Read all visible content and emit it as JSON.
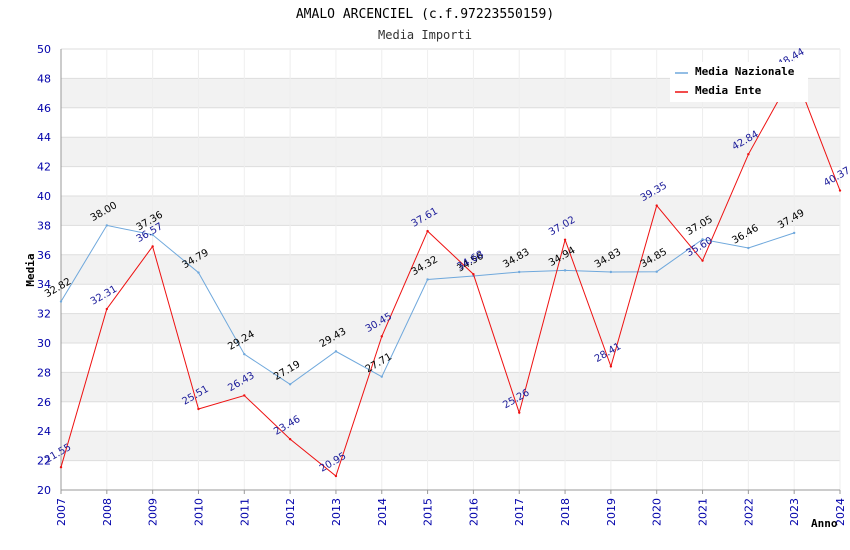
{
  "chart_data": {
    "type": "line",
    "title": "AMALO ARCENCIEL (c.f.97223550159)",
    "subtitle": "Media Importi",
    "ylabel": "Media",
    "xlabel": "Anno",
    "ylim": [
      20,
      50
    ],
    "y_ticks": [
      20,
      22,
      24,
      26,
      28,
      30,
      32,
      34,
      36,
      38,
      40,
      42,
      44,
      46,
      48,
      50
    ],
    "categories": [
      "2007",
      "2008",
      "2009",
      "2010",
      "2011",
      "2012",
      "2013",
      "2014",
      "2015",
      "2016",
      "2017",
      "2018",
      "2019",
      "2020",
      "2021",
      "2022",
      "2023",
      "2024"
    ],
    "series": [
      {
        "name": "Media Nazionale",
        "color": "#6fa8dc",
        "values": [
          32.82,
          38.0,
          37.36,
          34.79,
          29.24,
          27.19,
          29.43,
          27.71,
          34.32,
          34.56,
          34.83,
          34.94,
          34.83,
          34.85,
          37.05,
          36.46,
          37.49,
          null
        ],
        "labels": [
          "32.82",
          "38.00",
          "37.36",
          "34.79",
          "29.24",
          "27.19",
          "29.43",
          "27.71",
          "34.32",
          "34.56",
          "34.83",
          "34.94",
          "34.83",
          "34.85",
          "37.05",
          "36.46",
          "37.49",
          ""
        ]
      },
      {
        "name": "Media Ente",
        "color": "#ee1111",
        "values": [
          21.55,
          32.31,
          36.57,
          25.51,
          26.43,
          23.46,
          20.95,
          30.45,
          37.61,
          34.68,
          25.26,
          37.02,
          28.41,
          39.35,
          35.6,
          42.84,
          48.44,
          40.37
        ],
        "labels": [
          "21.55",
          "32.31",
          "36.57",
          "25.51",
          "26.43",
          "23.46",
          "20.95",
          "30.45",
          "37.61",
          "34.68",
          "25.26",
          "37.02",
          "28.41",
          "39.35",
          "35.60",
          "42.84",
          "48.44",
          "40.37"
        ]
      }
    ]
  }
}
